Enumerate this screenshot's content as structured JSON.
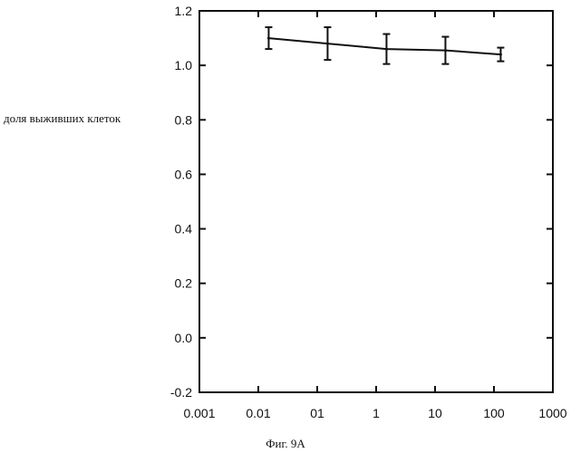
{
  "chart_data": {
    "type": "line",
    "xscale": "log",
    "xlim": [
      0.001,
      1000
    ],
    "ylim": [
      -0.2,
      1.2
    ],
    "x_tick_labels": [
      "0.001",
      "0.01",
      "01",
      "1",
      "10",
      "100",
      "1000"
    ],
    "y_tick_labels": [
      "1.2",
      "1.0",
      "0.8",
      "0.6",
      "0.4",
      "0.2",
      "0.0",
      "-0.2"
    ],
    "ylabel": "доля выживших клеток",
    "caption": "Фиг. 9А",
    "series": [
      {
        "x": [
          0.015,
          0.15,
          1.5,
          15,
          130
        ],
        "y": [
          1.1,
          1.08,
          1.06,
          1.055,
          1.04
        ],
        "err": [
          0.04,
          0.06,
          0.055,
          0.05,
          0.025
        ]
      }
    ],
    "grid": false
  }
}
